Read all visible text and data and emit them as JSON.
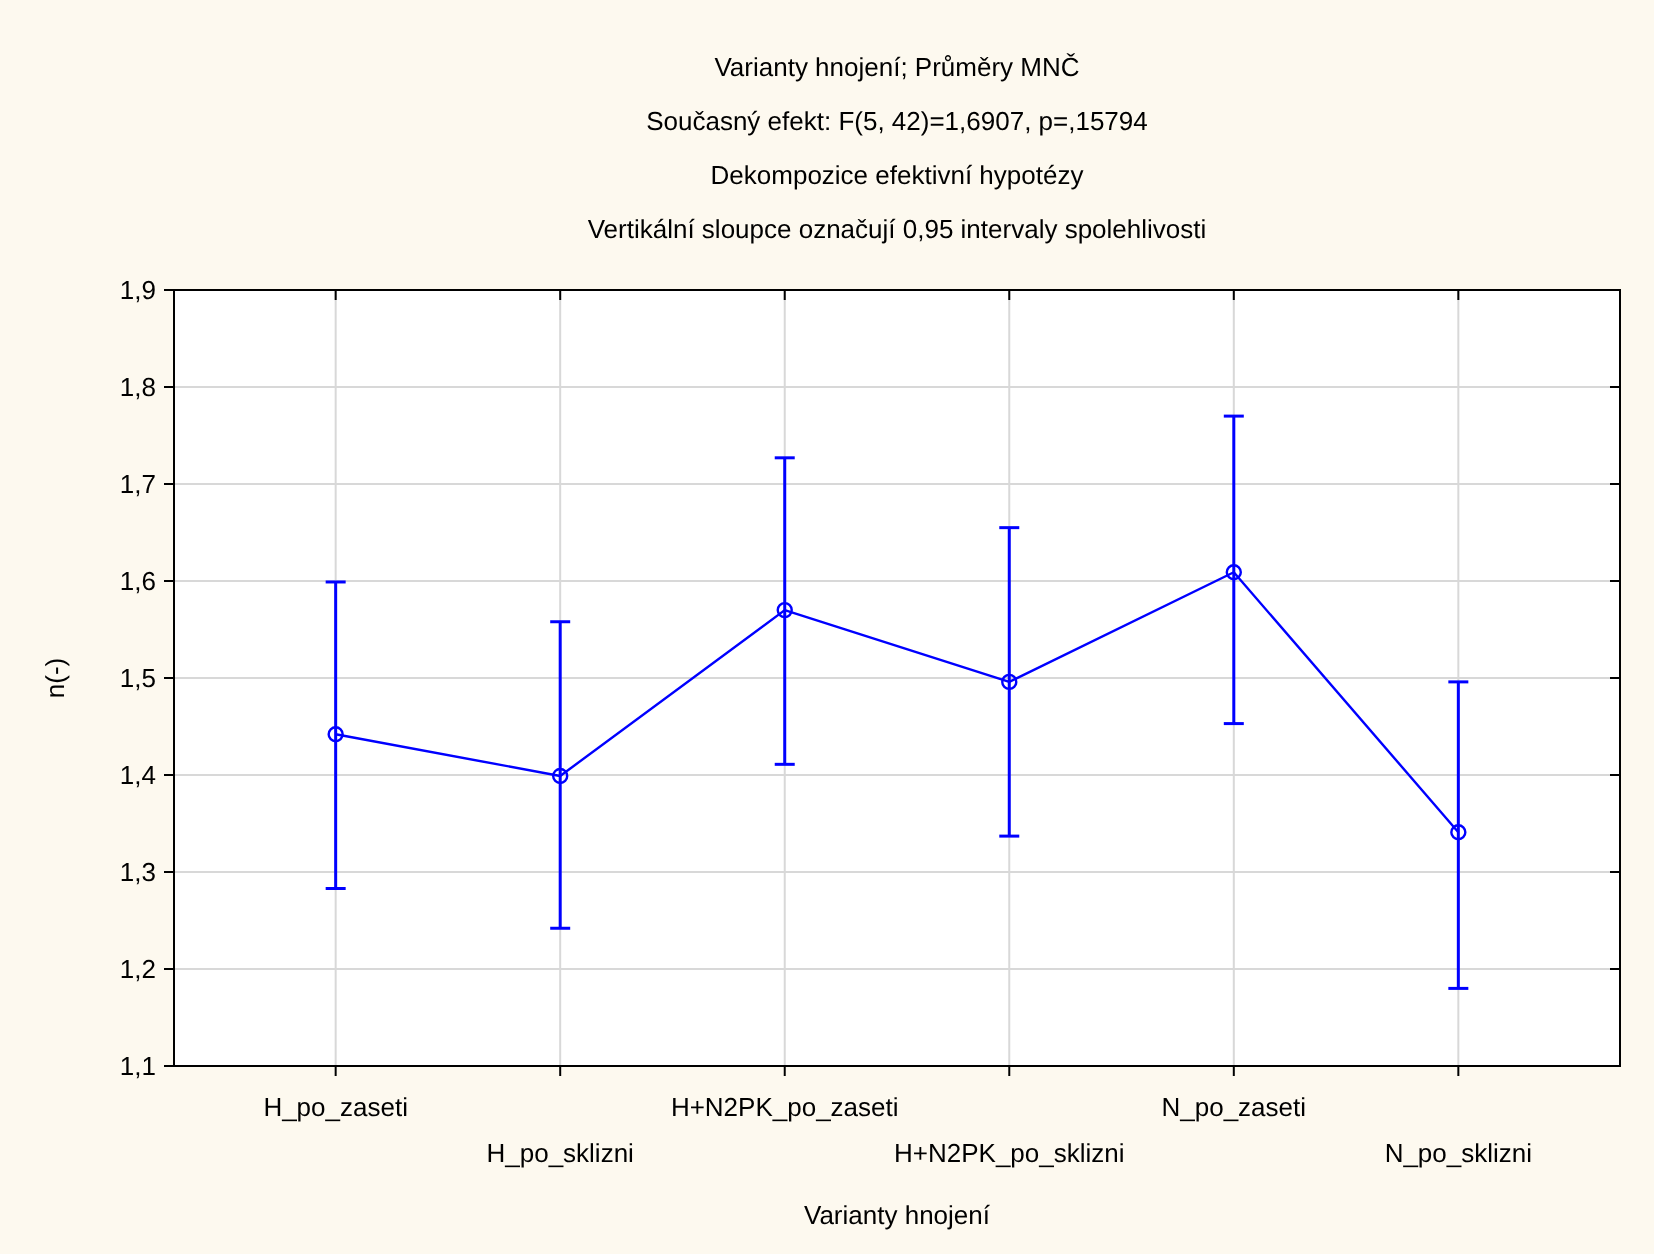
{
  "chart_data": {
    "type": "line",
    "title": "Varianty hnojení; Průměry MNČ",
    "subtitle": "Současný efekt: F(5, 42)=1,6907, p=,15794\nDekompozice efektivní hypotézy\nVertikální sloupce označují 0,95 intervaly spolehlivosti",
    "xlabel": "Varianty hnojení",
    "ylabel": "n(-)",
    "categories": [
      "H_po_zaseti",
      "H_po_sklizni",
      "H+N2PK_po_zaseti",
      "H+N2PK_po_sklizni",
      "N_po_zaseti",
      "N_po_sklizni"
    ],
    "series": [
      {
        "color": "#0000ff",
        "values": [
          1.442,
          1.399,
          1.57,
          1.496,
          1.609,
          1.341
        ],
        "errors": [
          [
            1.283,
            1.599
          ],
          [
            1.242,
            1.558
          ],
          [
            1.411,
            1.727
          ],
          [
            1.337,
            1.655
          ],
          [
            1.453,
            1.77
          ],
          [
            1.18,
            1.496
          ]
        ]
      }
    ],
    "ylim": [
      1.1,
      1.9
    ],
    "yticks": [
      {
        "value": 1.1,
        "label": "1,1"
      },
      {
        "value": 1.2,
        "label": "1,2"
      },
      {
        "value": 1.3,
        "label": "1,3"
      },
      {
        "value": 1.4,
        "label": "1,4"
      },
      {
        "value": 1.5,
        "label": "1,5"
      },
      {
        "value": 1.6,
        "label": "1,6"
      },
      {
        "value": 1.7,
        "label": "1,7"
      },
      {
        "value": 1.8,
        "label": "1,8"
      },
      {
        "value": 1.9,
        "label": "1,9"
      }
    ],
    "grid": true,
    "marker": "circle",
    "line_style": "solid"
  }
}
